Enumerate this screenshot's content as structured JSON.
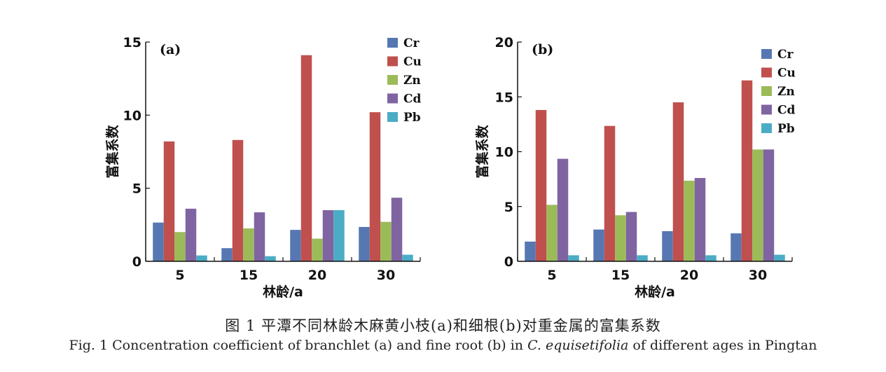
{
  "colors": {
    "Cr": "#5677b2",
    "Cu": "#c0504d",
    "Zn": "#9bbb59",
    "Cd": "#8064a2",
    "Pb": "#4bacc6"
  },
  "chart_data": [
    {
      "type": "bar",
      "panel_label": "(a)",
      "xlabel": "林龄/a",
      "ylabel": "富集系数",
      "categories": [
        "5",
        "15",
        "20",
        "30"
      ],
      "ylim": [
        0,
        15
      ],
      "yticks": [
        "0",
        "5",
        "10",
        "15"
      ],
      "legend_position": "top-right",
      "series": [
        {
          "name": "Cr",
          "values": [
            2.65,
            0.9,
            2.15,
            2.35
          ]
        },
        {
          "name": "Cu",
          "values": [
            8.2,
            8.3,
            14.1,
            10.2
          ]
        },
        {
          "name": "Zn",
          "values": [
            2.0,
            2.25,
            1.55,
            2.7
          ]
        },
        {
          "name": "Cd",
          "values": [
            3.6,
            3.35,
            3.5,
            4.35
          ]
        },
        {
          "name": "Pb",
          "values": [
            0.4,
            0.35,
            3.5,
            0.45
          ]
        }
      ]
    },
    {
      "type": "bar",
      "panel_label": "(b)",
      "xlabel": "林龄/a",
      "ylabel": "富集系数",
      "categories": [
        "5",
        "15",
        "20",
        "30"
      ],
      "ylim": [
        0,
        20
      ],
      "yticks": [
        "0",
        "5",
        "10",
        "15",
        "20"
      ],
      "legend_position": "top-right",
      "series": [
        {
          "name": "Cr",
          "values": [
            1.8,
            2.9,
            2.75,
            2.55
          ]
        },
        {
          "name": "Cu",
          "values": [
            13.8,
            12.35,
            14.5,
            16.5
          ]
        },
        {
          "name": "Zn",
          "values": [
            5.15,
            4.2,
            7.35,
            10.2
          ]
        },
        {
          "name": "Cd",
          "values": [
            9.35,
            4.5,
            7.6,
            10.2
          ]
        },
        {
          "name": "Pb",
          "values": [
            0.55,
            0.55,
            0.55,
            0.6
          ]
        }
      ]
    }
  ],
  "caption": {
    "cn": "图 1   平潭不同林龄木麻黄小枝(a)和细根(b)对重金属的富集系数",
    "en_prefix": "Fig. 1   Concentration coefficient of branchlet (a) and fine root (b) in ",
    "en_species": "C. equisetifolia",
    "en_suffix": " of different ages in Pingtan"
  }
}
